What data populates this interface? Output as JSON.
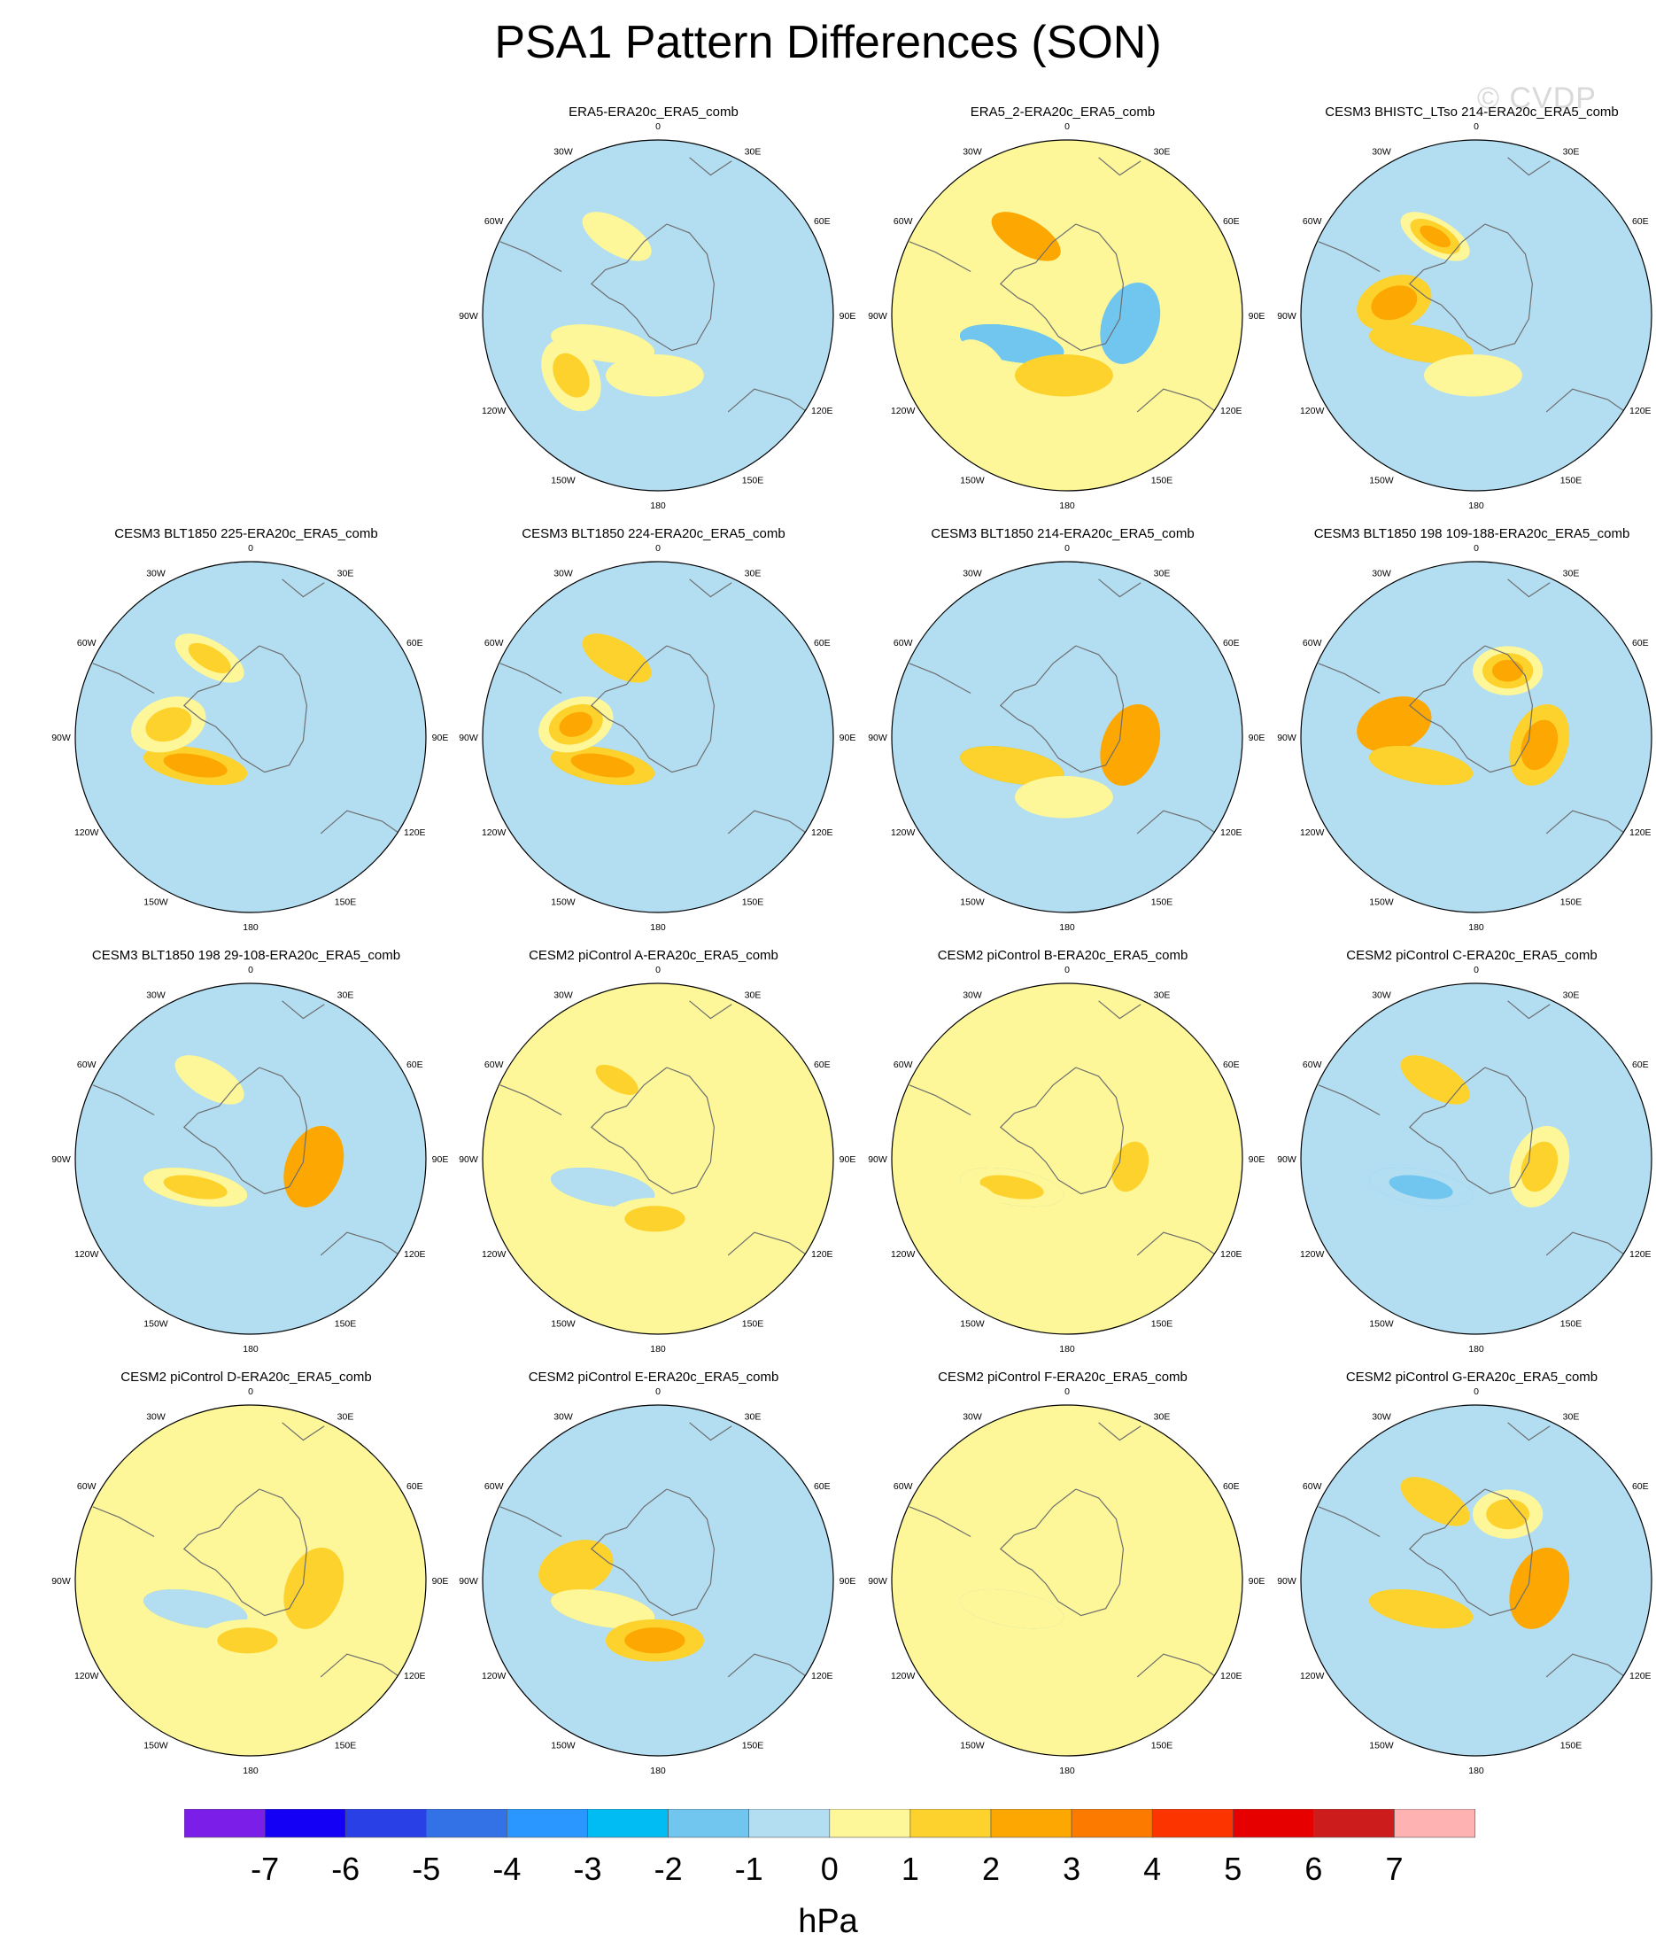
{
  "title": "PSA1 Pattern Differences (SON)",
  "watermark": "© CVDP",
  "units": "hPa",
  "lon_labels": [
    "0",
    "30E",
    "60E",
    "90E",
    "120E",
    "150E",
    "180",
    "150W",
    "120W",
    "90W",
    "60W",
    "30W"
  ],
  "colors": {
    "palette": [
      "#7a1ee8",
      "#1400f5",
      "#2840e6",
      "#3272e6",
      "#2a96ff",
      "#00bcf2",
      "#70c6ef",
      "#b3def2",
      "#fdf79a",
      "#fdd22c",
      "#fca702",
      "#fc7a00",
      "#fc3400",
      "#e60000",
      "#cc1c1c",
      "#ffb2b2"
    ],
    "coast": "#6e6e6e",
    "border": "#000000"
  },
  "chart_data": {
    "type": "contour-map",
    "projection": "south polar stereographic",
    "field": "PSA1 pattern difference, sea level pressure",
    "colorbar": {
      "ticks": [
        -7,
        -6,
        -5,
        -4,
        -3,
        -2,
        -1,
        0,
        1,
        2,
        3,
        4,
        5,
        6,
        7
      ],
      "tick_labels": [
        "-7",
        "-6",
        "-5",
        "-4",
        "-3",
        "-2",
        "-1",
        "0",
        "1",
        "2",
        "3",
        "4",
        "5",
        "6",
        "7"
      ],
      "range": [
        -7.5,
        7.5
      ]
    },
    "panels": [
      {
        "title": "ERA5-ERA20c_ERA5_comb",
        "row": 0,
        "col": 1,
        "background": -0.5,
        "features": [
          [
            -5,
            -1.2,
            -1.6
          ],
          [
            -1,
            -0.8,
            -2.0
          ],
          [
            -6,
            -2.0,
            -1.6
          ],
          [
            -7,
            0.9,
            0.4
          ],
          [
            4,
            0.6,
            0.5
          ],
          [
            5,
            1.6,
            0.6
          ],
          [
            1,
            1.0,
            0.4
          ]
        ]
      },
      {
        "title": "ERA5_2-ERA20c_ERA5_comb",
        "row": 0,
        "col": 2,
        "background": 0.5,
        "features": [
          [
            -4,
            -6.4,
            -1.0
          ],
          [
            -3,
            -2.3,
            -3.0
          ],
          [
            -2,
            -1.7,
            -1.8
          ],
          [
            1,
            3.3,
            2.7
          ],
          [
            4,
            1.6,
            1.0
          ],
          [
            5,
            0.6,
            0.5
          ],
          [
            3,
            -1.8,
            -1.2
          ]
        ]
      },
      {
        "title": "CESM3 BHISTC_LTso 214-ERA20c_ERA5_comb",
        "row": 0,
        "col": 3,
        "background": -0.5,
        "features": [
          [
            -5,
            -2.8,
            -1.4
          ],
          [
            -3,
            2.3,
            1.4
          ],
          [
            0,
            2.6,
            1.6
          ],
          [
            1,
            2.8,
            0.5
          ],
          [
            4,
            0.4,
            0.5
          ]
        ]
      },
      {
        "title": "CESM3 BLT1850 225-ERA20c_ERA5_comb",
        "row": 1,
        "col": 0,
        "background": -0.5,
        "features": [
          [
            -1,
            -1.8,
            -0.7
          ],
          [
            -2,
            2.8,
            1.5
          ],
          [
            0,
            1.8,
            0.5
          ],
          [
            1,
            2.0,
            0.8
          ]
        ]
      },
      {
        "title": "CESM3 BLT1850 224-ERA20c_ERA5_comb",
        "row": 1,
        "col": 1,
        "background": -0.5,
        "features": [
          [
            -5,
            -2.3,
            -1.6
          ],
          [
            -4,
            2.5,
            1.6
          ],
          [
            1,
            2.4,
            1.0
          ],
          [
            0,
            2.6,
            0.5
          ]
        ]
      },
      {
        "title": "CESM3 BLT1850 214-ERA20c_ERA5_comb",
        "row": 1,
        "col": 2,
        "background": -0.5,
        "features": [
          [
            -5,
            -6.5,
            -1.0
          ],
          [
            -3,
            -2.0,
            -1.2
          ],
          [
            -1,
            -1.5,
            -1.4
          ],
          [
            3,
            3.0,
            2.7
          ],
          [
            -4,
            1.0,
            1.0
          ],
          [
            4,
            1.4,
            0.8
          ]
        ]
      },
      {
        "title": "CESM3 BLT1850 198 109-188-ERA20c_ERA5_comb",
        "row": 1,
        "col": 3,
        "background": -0.5,
        "features": [
          [
            -3,
            -2.8,
            -0.4
          ],
          [
            -5,
            -2.5,
            -1.4
          ],
          [
            0,
            2.3,
            2.5
          ],
          [
            3,
            2.6,
            1.1
          ],
          [
            -3,
            1.9,
            1.1
          ],
          [
            -1,
            1.0,
            1.0
          ],
          [
            2,
            2.6,
            0.5
          ]
        ]
      },
      {
        "title": "CESM3 BLT1850 198 29-108-ERA20c_ERA5_comb",
        "row": 2,
        "col": 0,
        "background": -0.5,
        "features": [
          [
            -5,
            -3.0,
            -1.6
          ],
          [
            -1,
            2.7,
            1.3
          ],
          [
            3,
            2.6,
            1.0
          ],
          [
            3,
            3.2,
            2.4
          ],
          [
            -1,
            2.0,
            0.5
          ],
          [
            1,
            1.0,
            0.4
          ]
        ]
      },
      {
        "title": "CESM2 piControl A-ERA20c_ERA5_comb",
        "row": 2,
        "col": 1,
        "background": 0.5,
        "features": [
          [
            -4,
            -2.0,
            -1.3
          ],
          [
            -3,
            -1.9,
            -1.6
          ],
          [
            -5,
            -1.4,
            -0.6
          ],
          [
            4,
            1.8,
            0.5
          ],
          [
            1,
            2.0,
            0.6
          ]
        ]
      },
      {
        "title": "CESM2 piControl B-ERA20c_ERA5_comb",
        "row": 2,
        "col": 2,
        "background": 0.5,
        "features": [
          [
            -5,
            1.8,
            1.6
          ],
          [
            -3,
            -1.8,
            -1.3
          ],
          [
            -1,
            1.6,
            0.6
          ],
          [
            3,
            2.0,
            0.5
          ],
          [
            5,
            1.4,
            0.4
          ]
        ]
      },
      {
        "title": "CESM2 piControl C-ERA20c_ERA5_comb",
        "row": 2,
        "col": 3,
        "background": -0.5,
        "features": [
          [
            -4,
            -4.0,
            -1.2
          ],
          [
            -3,
            -1.9,
            -1.6
          ],
          [
            -6,
            -1.6,
            -0.6
          ],
          [
            1,
            2.4,
            1.4
          ],
          [
            3,
            2.2,
            0.5
          ]
        ]
      },
      {
        "title": "CESM2 piControl D-ERA20c_ERA5_comb",
        "row": 3,
        "col": 0,
        "background": 0.5,
        "features": [
          [
            -4,
            -2.8,
            -1.5
          ],
          [
            -3,
            1.6,
            1.6
          ],
          [
            -1,
            -0.8,
            -0.6
          ],
          [
            3,
            2.4,
            1.2
          ],
          [
            4,
            2.2,
            0.5
          ]
        ]
      },
      {
        "title": "CESM2 piControl E-ERA20c_ERA5_comb",
        "row": 3,
        "col": 1,
        "background": -0.5,
        "features": [
          [
            -5,
            3.0,
            1.8
          ],
          [
            0,
            1.7,
            1.6
          ],
          [
            -3,
            1.0,
            0.5
          ],
          [
            4,
            1.7,
            1.8
          ],
          [
            4,
            2.5,
            1.4
          ]
        ]
      },
      {
        "title": "CESM2 piControl F-ERA20c_ERA5_comb",
        "row": 3,
        "col": 2,
        "background": 0.5,
        "features": [
          [
            -5,
            -2.0,
            -1.2
          ],
          [
            -4,
            -1.6,
            -1.6
          ],
          [
            -3,
            1.6,
            1.3
          ],
          [
            -2,
            -0.6,
            -1.0
          ],
          [
            -1,
            1.0,
            0.6
          ]
        ]
      },
      {
        "title": "CESM2 piControl G-ERA20c_ERA5_comb",
        "row": 3,
        "col": 3,
        "background": -0.5,
        "features": [
          [
            -4,
            -2.8,
            -1.6
          ],
          [
            -3,
            2.0,
            1.5
          ],
          [
            -2,
            2.0,
            1.2
          ],
          [
            -3,
            1.6,
            2.3
          ],
          [
            1,
            2.2,
            1.2
          ],
          [
            3,
            3.0,
            2.6
          ],
          [
            2,
            2.4,
            0.5
          ]
        ]
      }
    ]
  }
}
